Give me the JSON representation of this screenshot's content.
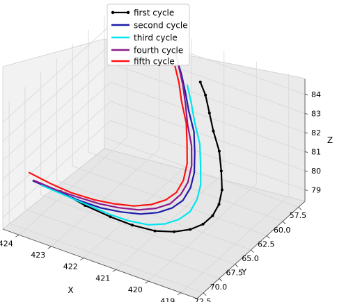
{
  "chart_data": {
    "type": "line",
    "projection": "3d",
    "title": "",
    "legend_position": "top-center",
    "grid": true,
    "axes": {
      "x": {
        "label": "X",
        "range": [
          418.5,
          424.5
        ],
        "ticks": [
          424,
          423,
          422,
          421,
          420,
          419
        ],
        "tick_labels": [
          "424",
          "423",
          "422",
          "421",
          "420",
          "419"
        ]
      },
      "y": {
        "label": "Y",
        "range": [
          56.5,
          73.5
        ],
        "ticks": [
          72.5,
          70.0,
          67.5,
          65.0,
          62.5,
          60.0,
          57.5
        ],
        "tick_labels": [
          "72.5",
          "70.0",
          "67.5",
          "65.0",
          "62.5",
          "60.0",
          "57.5"
        ]
      },
      "z": {
        "label": "Z",
        "range": [
          78.4,
          84.8
        ],
        "ticks": [
          79,
          80,
          81,
          82,
          83,
          84
        ],
        "tick_labels": [
          "79",
          "80",
          "81",
          "82",
          "83",
          "84"
        ]
      }
    },
    "series": [
      {
        "name": "first cycle",
        "color": "#000000",
        "marker": "dot",
        "points": [
          [
            423.2,
            71.0,
            80.4
          ],
          [
            422.6,
            70.2,
            79.8
          ],
          [
            422.0,
            69.3,
            79.3
          ],
          [
            421.5,
            68.4,
            78.9
          ],
          [
            421.0,
            67.4,
            78.6
          ],
          [
            420.6,
            66.4,
            78.5
          ],
          [
            420.3,
            65.4,
            78.5
          ],
          [
            420.1,
            64.4,
            78.6
          ],
          [
            420.0,
            63.4,
            78.8
          ],
          [
            420.0,
            62.4,
            79.1
          ],
          [
            420.1,
            61.4,
            79.5
          ],
          [
            420.3,
            60.5,
            80.1
          ],
          [
            420.5,
            59.8,
            80.8
          ],
          [
            420.8,
            59.2,
            81.5
          ],
          [
            421.0,
            58.8,
            82.2
          ],
          [
            421.2,
            58.4,
            82.9
          ],
          [
            421.4,
            58.2,
            83.4
          ]
        ]
      },
      {
        "name": "second cycle",
        "color": "#1c1ca8",
        "marker": "none",
        "points": [
          [
            423.7,
            72.8,
            81.2
          ],
          [
            423.2,
            71.8,
            80.7
          ],
          [
            422.7,
            70.8,
            80.2
          ],
          [
            422.2,
            69.8,
            79.8
          ],
          [
            421.8,
            68.7,
            79.5
          ],
          [
            421.4,
            67.6,
            79.3
          ],
          [
            421.1,
            66.4,
            79.2
          ],
          [
            420.9,
            65.2,
            79.2
          ],
          [
            420.8,
            64.0,
            79.3
          ],
          [
            420.8,
            62.8,
            79.6
          ],
          [
            420.9,
            61.7,
            80.0
          ],
          [
            421.1,
            60.6,
            80.6
          ],
          [
            421.3,
            59.7,
            81.3
          ],
          [
            421.6,
            59.0,
            82.0
          ],
          [
            421.8,
            58.5,
            82.7
          ],
          [
            422.0,
            58.1,
            83.4
          ],
          [
            422.2,
            57.8,
            84.0
          ]
        ]
      },
      {
        "name": "third cycle",
        "color": "#00e5ee",
        "marker": "none",
        "points": [
          [
            423.5,
            72.5,
            81.0
          ],
          [
            423.0,
            71.5,
            80.5
          ],
          [
            422.5,
            70.5,
            80.0
          ],
          [
            422.0,
            69.5,
            79.5
          ],
          [
            421.6,
            68.5,
            79.1
          ],
          [
            421.2,
            67.4,
            78.8
          ],
          [
            420.9,
            66.3,
            78.7
          ],
          [
            420.7,
            65.1,
            78.7
          ],
          [
            420.6,
            63.9,
            78.8
          ],
          [
            420.6,
            62.8,
            79.1
          ],
          [
            420.7,
            61.7,
            79.5
          ],
          [
            420.9,
            60.7,
            80.1
          ],
          [
            421.1,
            59.8,
            80.8
          ],
          [
            421.4,
            59.1,
            81.6
          ],
          [
            421.6,
            58.6,
            82.3
          ],
          [
            421.8,
            58.2,
            83.0
          ]
        ]
      },
      {
        "name": "fourth cycle",
        "color": "#8b1a8b",
        "marker": "none",
        "points": [
          [
            423.7,
            72.7,
            81.2
          ],
          [
            423.2,
            71.7,
            80.7
          ],
          [
            422.8,
            70.7,
            80.3
          ],
          [
            422.3,
            69.6,
            79.9
          ],
          [
            421.9,
            68.5,
            79.6
          ],
          [
            421.5,
            67.4,
            79.4
          ],
          [
            421.2,
            66.2,
            79.3
          ],
          [
            421.0,
            65.0,
            79.3
          ],
          [
            420.9,
            63.8,
            79.5
          ],
          [
            420.9,
            62.7,
            79.8
          ],
          [
            421.0,
            61.6,
            80.3
          ],
          [
            421.2,
            60.6,
            80.9
          ],
          [
            421.5,
            59.7,
            81.6
          ],
          [
            421.7,
            59.0,
            82.3
          ],
          [
            421.9,
            58.4,
            83.0
          ],
          [
            422.1,
            58.0,
            83.7
          ],
          [
            422.3,
            57.6,
            84.4
          ]
        ]
      },
      {
        "name": "fifth cycle",
        "color": "#ff1010",
        "marker": "none",
        "points": [
          [
            423.8,
            72.9,
            81.6
          ],
          [
            423.3,
            71.9,
            81.0
          ],
          [
            422.9,
            70.9,
            80.5
          ],
          [
            422.4,
            69.8,
            80.1
          ],
          [
            422.0,
            68.7,
            79.8
          ],
          [
            421.6,
            67.6,
            79.6
          ],
          [
            421.3,
            66.4,
            79.5
          ],
          [
            421.1,
            65.2,
            79.5
          ],
          [
            421.0,
            64.0,
            79.6
          ],
          [
            421.0,
            62.9,
            79.9
          ],
          [
            421.1,
            61.8,
            80.4
          ],
          [
            421.3,
            60.8,
            81.0
          ],
          [
            421.5,
            59.9,
            81.7
          ],
          [
            421.8,
            59.1,
            82.4
          ],
          [
            422.0,
            58.5,
            83.1
          ],
          [
            422.2,
            58.1,
            83.7
          ]
        ]
      }
    ]
  }
}
